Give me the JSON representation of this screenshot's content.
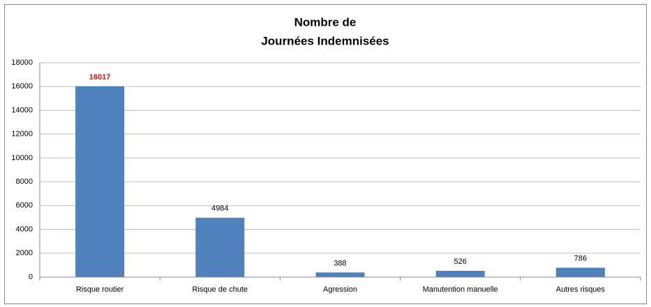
{
  "chart_data": {
    "type": "bar",
    "title": [
      "Nombre de",
      "Journées Indemnisées"
    ],
    "categories": [
      "Risque routier",
      "Risque de chute",
      "Agression",
      "Manutention manuelle",
      "Autres risques"
    ],
    "values": [
      16017,
      4984,
      388,
      526,
      786
    ],
    "value_label_colors": [
      "#ff0000",
      "#000000",
      "#000000",
      "#000000",
      "#000000"
    ],
    "color": "#4f81bd",
    "ylim": [
      0,
      18000
    ],
    "yticks": [
      0,
      2000,
      4000,
      6000,
      8000,
      10000,
      12000,
      14000,
      16000,
      18000
    ],
    "grid": true
  }
}
